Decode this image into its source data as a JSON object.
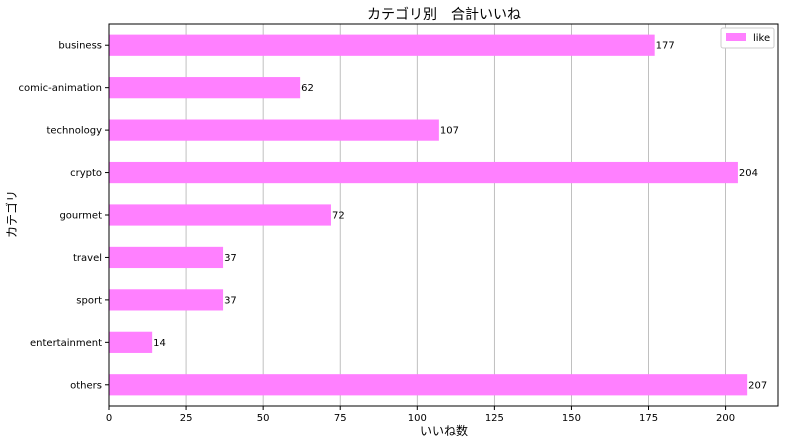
{
  "chart_data": {
    "type": "bar",
    "orientation": "horizontal",
    "title": "カテゴリ別　合計いいね",
    "xlabel": "いいね数",
    "ylabel": "カテゴリ",
    "categories": [
      "business",
      "comic-animation",
      "technology",
      "crypto",
      "gourmet",
      "travel",
      "sport",
      "entertainment",
      "others"
    ],
    "series": [
      {
        "name": "like",
        "values": [
          177,
          62,
          107,
          204,
          72,
          37,
          37,
          14,
          207
        ],
        "color": "#ff80ff"
      }
    ],
    "xlim": [
      0,
      217
    ],
    "xticks": [
      0,
      25,
      50,
      75,
      100,
      125,
      150,
      175,
      200
    ],
    "grid": "x",
    "legend": "top-right",
    "data_labels": true
  }
}
